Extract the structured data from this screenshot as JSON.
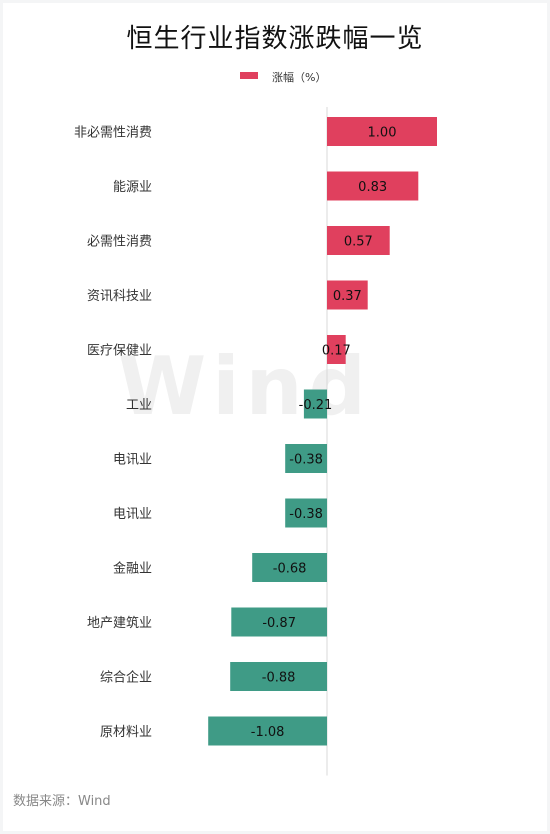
{
  "title": "恒生行业指数涨跌幅一览",
  "watermark": "Wind",
  "source": "数据来源：Wind",
  "colors": {
    "positive": "#e0405e",
    "negative": "#3f9b86",
    "axis": "#d8d8d8"
  },
  "chart_data": {
    "type": "bar",
    "orientation": "horizontal",
    "title": "恒生行业指数涨跌幅一览",
    "legend": "涨幅（%）",
    "legend_position": "top-center",
    "categories": [
      "非必需性消费",
      "能源业",
      "必需性消费",
      "资讯科技业",
      "医疗保健业",
      "工业",
      "电讯业",
      "电讯业",
      "金融业",
      "地产建筑业",
      "综合企业",
      "原材料业"
    ],
    "values": [
      1.0,
      0.83,
      0.57,
      0.37,
      0.17,
      -0.21,
      -0.38,
      -0.38,
      -0.68,
      -0.87,
      -0.88,
      -1.08
    ],
    "labels": [
      "1.00",
      "0.83",
      "0.57",
      "0.37",
      "0.17",
      "-0.21",
      "-0.38",
      "-0.38",
      "-0.68",
      "-0.87",
      "-0.88",
      "-1.08"
    ],
    "xlim": [
      -1.2,
      1.2
    ],
    "grid": false
  }
}
